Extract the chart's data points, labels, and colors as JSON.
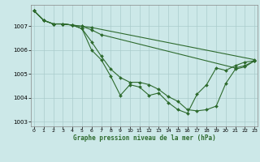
{
  "xlabel": "Graphe pression niveau de la mer (hPa)",
  "background_color": "#cce8e8",
  "line_color": "#2d6a2d",
  "grid_color": "#aacccc",
  "ylim": [
    1002.8,
    1007.9
  ],
  "xlim": [
    -0.3,
    23.3
  ],
  "yticks": [
    1003,
    1004,
    1005,
    1006,
    1007
  ],
  "xticks": [
    0,
    1,
    2,
    3,
    4,
    5,
    6,
    7,
    8,
    9,
    10,
    11,
    12,
    13,
    14,
    15,
    16,
    17,
    18,
    19,
    20,
    21,
    22,
    23
  ],
  "series": [
    {
      "x": [
        0,
        1,
        2,
        3,
        4,
        5,
        6,
        23
      ],
      "y": [
        1007.65,
        1007.25,
        1007.1,
        1007.1,
        1007.05,
        1007.0,
        1006.95,
        1005.6
      ]
    },
    {
      "x": [
        0,
        1,
        2,
        3,
        4,
        5,
        6,
        7,
        21,
        22,
        23
      ],
      "y": [
        1007.65,
        1007.25,
        1007.1,
        1007.1,
        1007.05,
        1007.0,
        1006.85,
        1006.65,
        1005.25,
        1005.35,
        1005.55
      ]
    },
    {
      "x": [
        0,
        1,
        2,
        3,
        4,
        5,
        6,
        7,
        8,
        9,
        10,
        11,
        12,
        13,
        14,
        15,
        16,
        17,
        18,
        19,
        20,
        21,
        22,
        23
      ],
      "y": [
        1007.65,
        1007.25,
        1007.1,
        1007.1,
        1007.05,
        1006.9,
        1006.35,
        1005.75,
        1005.2,
        1004.85,
        1004.65,
        1004.65,
        1004.55,
        1004.35,
        1004.05,
        1003.85,
        1003.5,
        1003.45,
        1003.5,
        1003.65,
        1004.6,
        1005.2,
        1005.3,
        1005.55
      ]
    },
    {
      "x": [
        0,
        1,
        2,
        3,
        4,
        5,
        6,
        7,
        8,
        9,
        10,
        11,
        12,
        13,
        14,
        15,
        16,
        17,
        18,
        19,
        20,
        21,
        22,
        23
      ],
      "y": [
        1007.65,
        1007.25,
        1007.1,
        1007.1,
        1007.05,
        1006.9,
        1006.0,
        1005.6,
        1004.9,
        1004.1,
        1004.55,
        1004.45,
        1004.1,
        1004.2,
        1003.8,
        1003.5,
        1003.35,
        1004.15,
        1004.55,
        1005.25,
        1005.15,
        1005.35,
        1005.5,
        1005.55
      ]
    }
  ]
}
